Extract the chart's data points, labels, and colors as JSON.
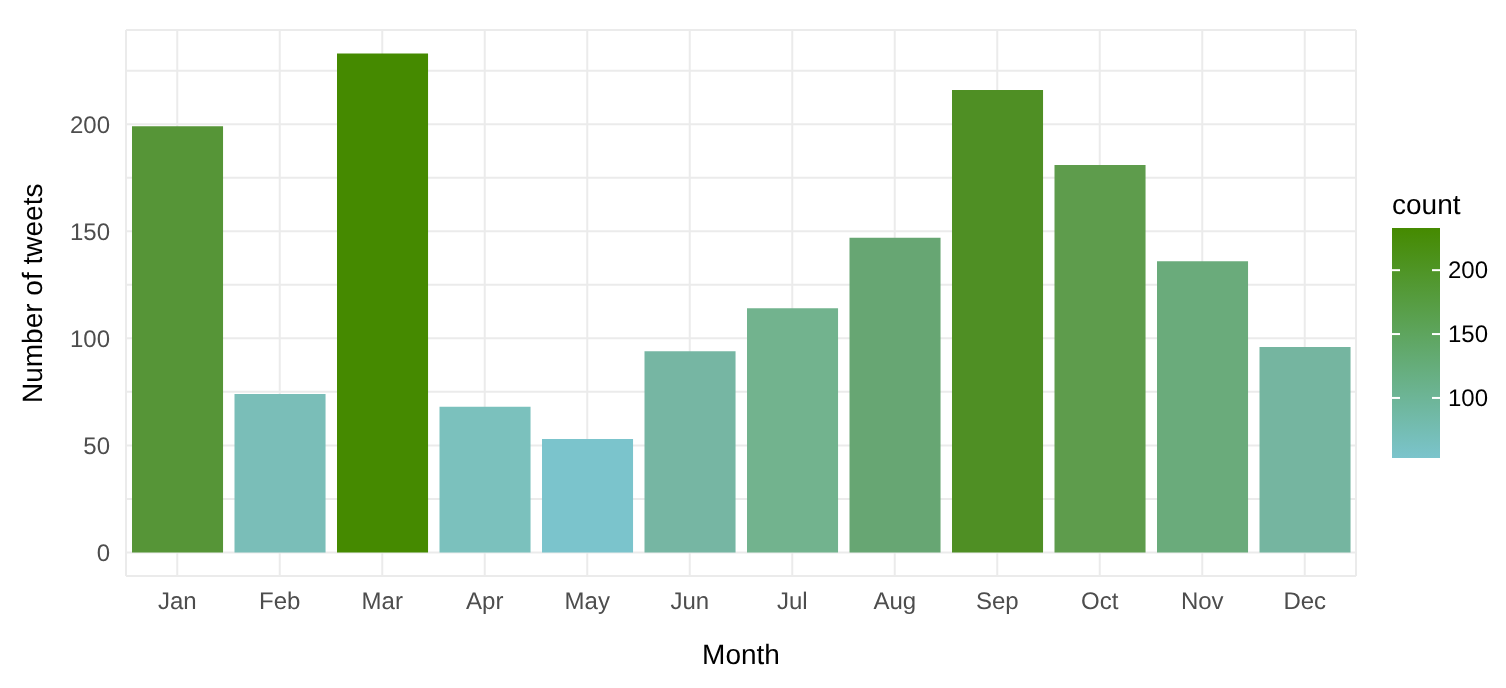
{
  "chart_data": {
    "type": "bar",
    "xlabel": "Month",
    "ylabel": "Number of tweets",
    "clabel": "count",
    "categories": [
      "Jan",
      "Feb",
      "Mar",
      "Apr",
      "May",
      "Jun",
      "Jul",
      "Aug",
      "Sep",
      "Oct",
      "Nov",
      "Dec"
    ],
    "values": [
      199,
      74,
      233,
      68,
      53,
      94,
      114,
      147,
      216,
      181,
      136,
      96
    ],
    "colors": [
      "#569537",
      "#7abeb8",
      "#458a00",
      "#7bc1bd",
      "#7bc4cc",
      "#76b6a3",
      "#72b38e",
      "#67a673",
      "#4f8f24",
      "#5e9c4c",
      "#6aab7b",
      "#75b5a0"
    ],
    "clim": [
      53,
      233
    ],
    "cticks": [
      100,
      150,
      200
    ],
    "ylim": [
      -11,
      244
    ],
    "yticks": [
      0,
      {
        "value": 25,
        "label": null
      },
      50,
      {
        "value": 75,
        "label": null
      },
      100,
      {
        "value": 125,
        "label": null
      },
      150,
      {
        "value": 175,
        "label": null
      },
      200,
      {
        "value": 225,
        "label": null
      }
    ],
    "grid": true
  }
}
